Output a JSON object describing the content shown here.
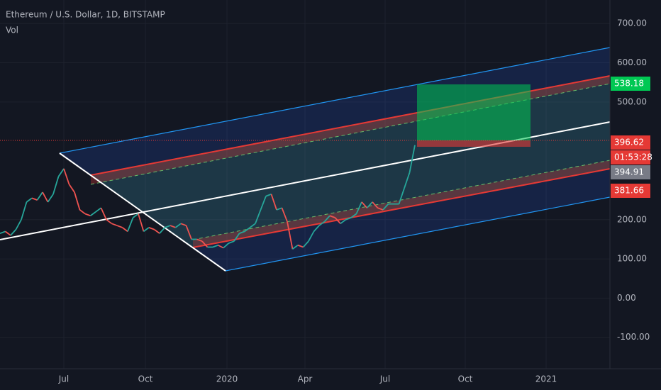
{
  "header": {
    "title": "Ethereum / U.S. Dollar, 1D, BITSTAMP",
    "indicator": "Vol"
  },
  "price_axis": {
    "ylim": [
      -180,
      760
    ],
    "ticks": [
      {
        "value": 700,
        "label": "700.00"
      },
      {
        "value": 600,
        "label": "600.00"
      },
      {
        "value": 500,
        "label": "500.00"
      },
      {
        "value": 200,
        "label": "200.00"
      },
      {
        "value": 100,
        "label": "100.00"
      },
      {
        "value": 0,
        "label": "0.00"
      },
      {
        "value": -100,
        "label": "-100.00"
      }
    ]
  },
  "time_axis": {
    "labels": [
      "Jul",
      "Oct",
      "2020",
      "Apr",
      "Jul",
      "Oct",
      "2021"
    ]
  },
  "price_tags": [
    {
      "label": "538.18",
      "color": "#00c853"
    },
    {
      "label": "396.62",
      "color": "#e53935"
    },
    {
      "label": "01:53:28",
      "color": "#e53935"
    },
    {
      "label": "394.91",
      "color": "#787b86"
    },
    {
      "label": "381.66",
      "color": "#e53935"
    }
  ],
  "price_path": [
    165,
    170,
    160,
    175,
    200,
    245,
    255,
    250,
    270,
    245,
    265,
    310,
    330,
    290,
    270,
    225,
    215,
    210,
    220,
    230,
    200,
    190,
    185,
    180,
    170,
    205,
    215,
    170,
    180,
    175,
    165,
    180,
    185,
    180,
    190,
    185,
    150,
    150,
    145,
    130,
    130,
    135,
    128,
    140,
    145,
    165,
    170,
    180,
    190,
    225,
    260,
    265,
    225,
    230,
    195,
    125,
    135,
    130,
    145,
    170,
    185,
    195,
    210,
    205,
    190,
    200,
    205,
    215,
    245,
    230,
    245,
    230,
    225,
    240,
    240,
    240,
    280,
    320,
    390
  ]
}
